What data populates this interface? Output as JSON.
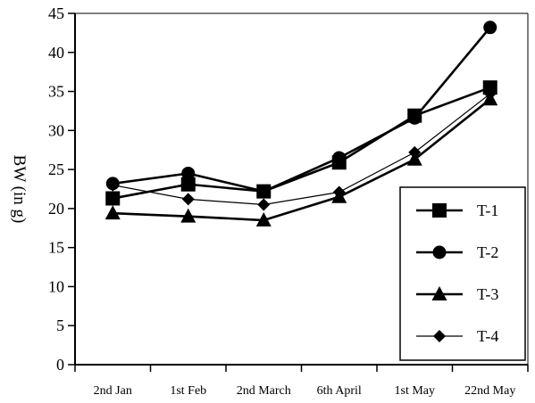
{
  "chart_data": {
    "type": "line",
    "title": "",
    "xlabel": "",
    "ylabel": "BW (in g)",
    "ylim": [
      0,
      45
    ],
    "yticks": [
      0,
      5,
      10,
      15,
      20,
      25,
      30,
      35,
      40,
      45
    ],
    "categories": [
      "2nd Jan",
      "1st Feb",
      "2nd March",
      "6th April",
      "1st May",
      "22nd May"
    ],
    "grid": false,
    "legend_position": "bottom-right",
    "series": [
      {
        "name": "T-1",
        "marker": "square",
        "color": "#000000",
        "stroke_weight": "bold",
        "values": [
          21.3,
          23.1,
          22.2,
          25.9,
          31.9,
          35.5
        ]
      },
      {
        "name": "T-2",
        "marker": "circle",
        "color": "#000000",
        "stroke_weight": "bold",
        "values": [
          23.2,
          24.5,
          22.2,
          26.5,
          31.6,
          43.2
        ]
      },
      {
        "name": "T-3",
        "marker": "triangle",
        "color": "#000000",
        "stroke_weight": "bold",
        "values": [
          19.4,
          19.0,
          18.5,
          21.5,
          26.3,
          34.0
        ]
      },
      {
        "name": "T-4",
        "marker": "diamond",
        "color": "#000000",
        "stroke_weight": "thin",
        "values": [
          23.0,
          21.2,
          20.5,
          22.1,
          27.2,
          34.7
        ]
      }
    ]
  }
}
